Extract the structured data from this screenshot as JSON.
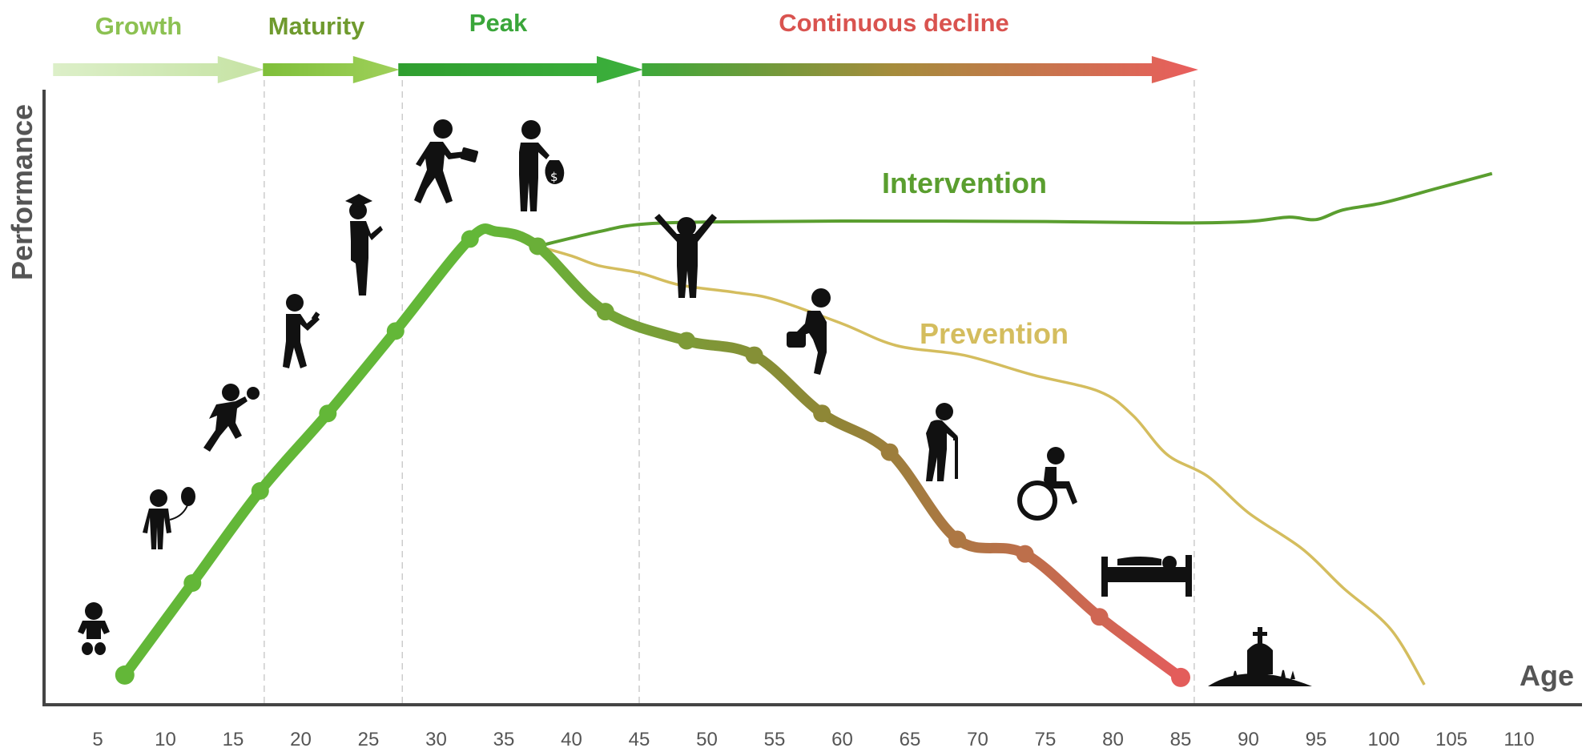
{
  "phases": [
    {
      "label": "Growth",
      "color": "#8cc152",
      "arrow_from": 2,
      "arrow_to": 17
    },
    {
      "label": "Maturity",
      "color": "#6f9a2e",
      "arrow_from": 17.5,
      "arrow_to": 27
    },
    {
      "label": "Peak",
      "color": "#3aa63a",
      "arrow_from": 27.5,
      "arrow_to": 45
    },
    {
      "label": "Continuous decline",
      "color": "#d9534f",
      "arrow_from": 45.5,
      "arrow_to": 86
    }
  ],
  "phase_boundaries": [
    17.3,
    27.5,
    45,
    86
  ],
  "axes": {
    "ylabel": "Performance",
    "xlabel": "Age",
    "xticks": [
      5,
      10,
      15,
      20,
      25,
      30,
      35,
      40,
      45,
      50,
      55,
      60,
      65,
      70,
      75,
      80,
      85,
      90,
      95,
      100,
      105,
      110
    ]
  },
  "chart_data": {
    "type": "line",
    "xlabel": "Age",
    "ylabel": "Performance",
    "series": [
      {
        "name": "",
        "color_start": "#66bb33",
        "color_end": "#dd5555",
        "points": [
          [
            7,
            2
          ],
          [
            12,
            21
          ],
          [
            17,
            40
          ],
          [
            22,
            56
          ],
          [
            27,
            73
          ],
          [
            32.5,
            92
          ],
          [
            34.5,
            93.5
          ],
          [
            37.5,
            90.5
          ],
          [
            42.5,
            77
          ],
          [
            48.5,
            71
          ],
          [
            53.5,
            68
          ],
          [
            58.5,
            56
          ],
          [
            63.5,
            48
          ],
          [
            68.5,
            30
          ],
          [
            73.5,
            27
          ],
          [
            79,
            14
          ],
          [
            85,
            1.5
          ]
        ],
        "marker_ages": [
          7,
          12,
          17,
          22,
          27,
          32.5,
          37.5,
          42.5,
          48.5,
          53.5,
          58.5,
          63.5,
          68.5,
          73.5,
          79,
          85
        ]
      },
      {
        "name": "Intervention",
        "color": "#5a9e2f",
        "points": [
          [
            37.5,
            90.5
          ],
          [
            42,
            93.5
          ],
          [
            45,
            95
          ],
          [
            50,
            95.5
          ],
          [
            60,
            95.7
          ],
          [
            75,
            95.6
          ],
          [
            85,
            95.3
          ],
          [
            90,
            95.6
          ],
          [
            93,
            96.5
          ],
          [
            95,
            96
          ],
          [
            97,
            98
          ],
          [
            100,
            99.5
          ],
          [
            104,
            102.5
          ],
          [
            108,
            105.5
          ]
        ]
      },
      {
        "name": "Prevention",
        "color": "#d4bd5e",
        "points": [
          [
            37.5,
            90.5
          ],
          [
            40,
            88.5
          ],
          [
            42,
            86.5
          ],
          [
            45,
            85
          ],
          [
            48,
            82.5
          ],
          [
            52,
            81
          ],
          [
            55,
            79.5
          ],
          [
            60,
            74.5
          ],
          [
            64,
            70
          ],
          [
            69,
            68
          ],
          [
            74,
            64
          ],
          [
            79,
            60.5
          ],
          [
            81.5,
            55.5
          ],
          [
            84,
            47.5
          ],
          [
            87,
            43
          ],
          [
            90,
            35.5
          ],
          [
            94,
            28
          ],
          [
            97,
            20
          ],
          [
            100.5,
            11.5
          ],
          [
            103,
            0
          ]
        ]
      }
    ]
  },
  "colors": {
    "axis": "#444444",
    "dash": "#cccccc",
    "icon": "#111111"
  },
  "icons": [
    "baby-icon",
    "child-with-balloon-icon",
    "boy-with-ball-icon",
    "student-reading-icon",
    "graduate-icon",
    "walking-with-briefcase-icon",
    "man-with-money-bag-icon",
    "arms-raised-icon",
    "man-with-bag-icon",
    "elder-with-cane-icon",
    "wheelchair-icon",
    "person-in-bed-icon",
    "grave-icon"
  ]
}
